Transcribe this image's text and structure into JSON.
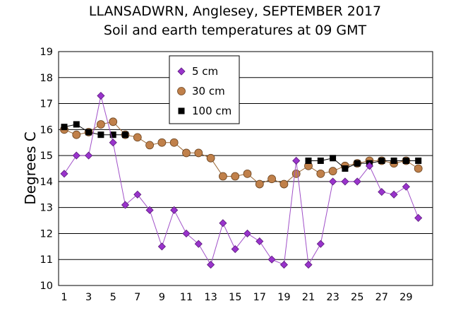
{
  "chart_data": {
    "type": "line",
    "title": "LLANSADWRN, Anglesey, SEPTEMBER 2017",
    "subtitle": "Soil and earth temperatures at 09 GMT",
    "ylabel": "Degrees C",
    "xlabel": "",
    "xlim": [
      1,
      30
    ],
    "ylim": [
      10,
      19
    ],
    "x_ticks": [
      "1",
      "3",
      "5",
      "7",
      "9",
      "11",
      "13",
      "15",
      "17",
      "19",
      "21",
      "23",
      "25",
      "27",
      "29"
    ],
    "y_ticks": [
      "10",
      "11",
      "12",
      "13",
      "14",
      "15",
      "16",
      "17",
      "18",
      "19"
    ],
    "grid": "horizontal",
    "legend_position": "top-center",
    "x": [
      1,
      2,
      3,
      4,
      5,
      6,
      7,
      8,
      9,
      10,
      11,
      12,
      13,
      14,
      15,
      16,
      17,
      18,
      19,
      20,
      21,
      22,
      23,
      24,
      25,
      26,
      27,
      28,
      29,
      30
    ],
    "series": [
      {
        "name": "5 cm",
        "marker": "diamond",
        "color": "#9933cc",
        "line_color": "#a050c8",
        "values": [
          14.3,
          15.0,
          15.0,
          17.3,
          15.5,
          13.1,
          13.5,
          12.9,
          11.5,
          12.9,
          12.0,
          11.6,
          10.8,
          12.4,
          11.4,
          12.0,
          11.7,
          11.0,
          10.8,
          14.8,
          10.8,
          11.6,
          14.0,
          14.0,
          14.0,
          14.6,
          13.6,
          13.5,
          13.8,
          12.6
        ]
      },
      {
        "name": "30 cm",
        "marker": "circle",
        "color": "#c0804a",
        "line_color": "#996633",
        "values": [
          16.0,
          15.8,
          15.9,
          16.2,
          16.3,
          15.8,
          15.7,
          15.4,
          15.5,
          15.5,
          15.1,
          15.1,
          14.9,
          14.2,
          14.2,
          14.3,
          13.9,
          14.1,
          13.9,
          14.3,
          14.6,
          14.3,
          14.4,
          14.6,
          14.7,
          14.8,
          14.8,
          14.7,
          14.8,
          14.5
        ]
      },
      {
        "name": "100 cm",
        "marker": "square",
        "color": "#000000",
        "line_color": "#000000",
        "values": [
          16.1,
          16.2,
          15.9,
          15.8,
          15.8,
          15.8,
          null,
          null,
          null,
          null,
          null,
          null,
          null,
          null,
          null,
          null,
          null,
          null,
          null,
          null,
          14.8,
          14.8,
          14.9,
          14.5,
          14.7,
          14.7,
          14.8,
          14.8,
          14.8,
          14.8
        ]
      }
    ]
  }
}
